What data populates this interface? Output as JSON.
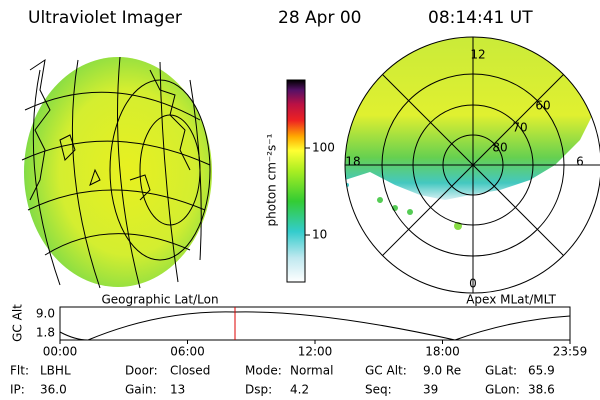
{
  "header": {
    "title": "Ultraviolet Imager",
    "date": "28 Apr 00",
    "time": "08:14:41 UT"
  },
  "left_panel": {
    "caption": "Geographic Lat/Lon"
  },
  "colorbar": {
    "label": "photon cm⁻²s⁻¹",
    "ticks": [
      "100",
      "10"
    ]
  },
  "right_panel": {
    "caption": "Apex MLat/MLT",
    "mlt_labels": [
      "12",
      "18",
      "6",
      "0"
    ],
    "lat_labels": [
      "60",
      "70",
      "80"
    ]
  },
  "altitude_plot": {
    "axis_label": "GC Alt",
    "yticks": [
      "9.0",
      "1.8"
    ],
    "xticks": [
      "00:00",
      "06:00",
      "12:00",
      "18:00",
      "23:59"
    ]
  },
  "status": {
    "rows": [
      [
        {
          "label": "Flt:",
          "value": "LBHL"
        },
        {
          "label": "Door:",
          "value": "Closed"
        },
        {
          "label": "Mode:",
          "value": "Normal"
        },
        {
          "label": "GC Alt:",
          "value": "9.0 Re"
        },
        {
          "label": "GLat:",
          "value": "65.9"
        }
      ],
      [
        {
          "label": "IP:",
          "value": "36.0"
        },
        {
          "label": "Gain:",
          "value": "13"
        },
        {
          "label": "Dsp:",
          "value": "4.2"
        },
        {
          "label": "Seq:",
          "value": "39"
        },
        {
          "label": "GLon:",
          "value": "38.6"
        }
      ]
    ]
  }
}
